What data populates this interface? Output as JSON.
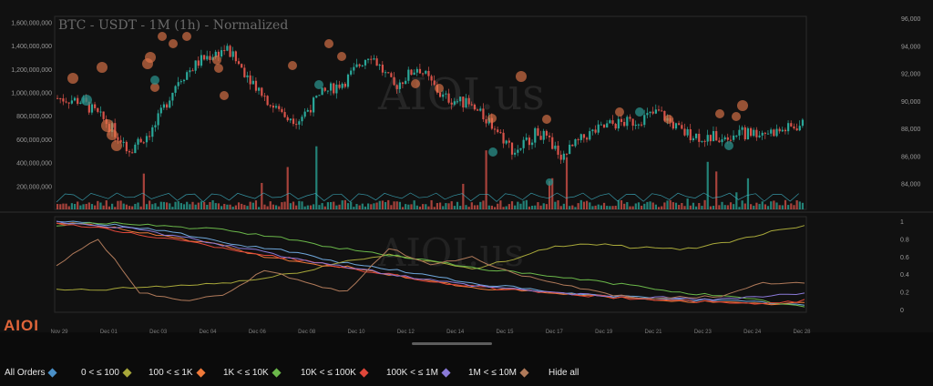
{
  "title": "BTC - USDT - 1M (1h) - Normalized",
  "watermark": "AIOI.us",
  "logo": "AIOI",
  "colors": {
    "background": "#111111",
    "up": "#2aa89a",
    "down": "#d9534a",
    "bubble": "#e0764a",
    "bubble_teal": "#2a8f89",
    "grid": "#262626"
  },
  "chart_data": [
    {
      "type": "candlestick",
      "title": "BTC - USDT - 1M (1h) - Normalized",
      "left_axis_ticks": [
        "1,600,000,000",
        "1,400,000,000",
        "1,200,000,000",
        "1,000,000,000",
        "800,000,000",
        "600,000,000",
        "400,000,000",
        "200,000,000"
      ],
      "left_axis_values": [
        1600000000,
        1400000000,
        1200000000,
        1000000000,
        800000000,
        600000000,
        400000000,
        200000000
      ],
      "right_axis_ticks": [
        "96,000",
        "94,000",
        "92,000",
        "90,000",
        "88,000",
        "86,000",
        "84,000"
      ],
      "right_axis_values": [
        96000,
        94000,
        92000,
        90000,
        88000,
        86000,
        84000
      ],
      "ylim_price": [
        82000,
        96000
      ],
      "price_path": [
        {
          "x": "Nov 29",
          "y": 90200
        },
        {
          "x": "Nov 30",
          "y": 90000
        },
        {
          "x": "Dec 01",
          "y": 88500
        },
        {
          "x": "Dec 01",
          "y": 86500
        },
        {
          "x": "Dec 02",
          "y": 88000
        },
        {
          "x": "Dec 02",
          "y": 91500
        },
        {
          "x": "Dec 03",
          "y": 93000
        },
        {
          "x": "Dec 04",
          "y": 93800
        },
        {
          "x": "Dec 05",
          "y": 91700
        },
        {
          "x": "Dec 06",
          "y": 89500
        },
        {
          "x": "Dec 07",
          "y": 88600
        },
        {
          "x": "Dec 08",
          "y": 90500
        },
        {
          "x": "Dec 09",
          "y": 91500
        },
        {
          "x": "Dec 10",
          "y": 93500
        },
        {
          "x": "Dec 11",
          "y": 91000
        },
        {
          "x": "Dec 12",
          "y": 92500
        },
        {
          "x": "Dec 13",
          "y": 90300
        },
        {
          "x": "Dec 14",
          "y": 89800
        },
        {
          "x": "Dec 15",
          "y": 88500
        },
        {
          "x": "Dec 16",
          "y": 86300
        },
        {
          "x": "Dec 17",
          "y": 87800
        },
        {
          "x": "Dec 18",
          "y": 86000
        },
        {
          "x": "Dec 19",
          "y": 87500
        },
        {
          "x": "Dec 20",
          "y": 88300
        },
        {
          "x": "Dec 21",
          "y": 88500
        },
        {
          "x": "Dec 22",
          "y": 89200
        },
        {
          "x": "Dec 23",
          "y": 87700
        },
        {
          "x": "Dec 24",
          "y": 87300
        },
        {
          "x": "Dec 25",
          "y": 87600
        },
        {
          "x": "Dec 26",
          "y": 87700
        },
        {
          "x": "Dec 27",
          "y": 87800
        },
        {
          "x": "Dec 28",
          "y": 88300
        }
      ]
    },
    {
      "type": "line",
      "right_axis_ticks": [
        "1",
        "0.8",
        "0.6",
        "0.4",
        "0.2",
        "0"
      ],
      "ylim": [
        0,
        1
      ],
      "x_ticks": [
        "Nov 29",
        "Dec 01",
        "Dec 03",
        "Dec 04",
        "Dec 06",
        "Dec 08",
        "Dec 10",
        "Dec 12",
        "Dec 14",
        "Dec 15",
        "Dec 17",
        "Dec 19",
        "Dec 21",
        "Dec 23",
        "Dec 24",
        "Dec 28"
      ],
      "series": [
        {
          "name": "All Orders",
          "color": "#6fa8dc",
          "values": [
            1,
            0.97,
            0.93,
            0.86,
            0.75,
            0.7,
            0.62,
            0.52,
            0.46,
            0.38,
            0.3,
            0.25,
            0.19,
            0.16,
            0.14,
            0.12,
            0.1,
            0.08,
            0.05
          ]
        },
        {
          "name": "0 < ≤ 100",
          "color": "#a8a83a",
          "values": [
            0.22,
            0.22,
            0.25,
            0.27,
            0.3,
            0.35,
            0.44,
            0.55,
            0.62,
            0.55,
            0.45,
            0.58,
            0.72,
            0.74,
            0.7,
            0.68,
            0.75,
            0.86,
            0.96
          ]
        },
        {
          "name": "100 < ≤ 1K",
          "color": "#f07a3a",
          "values": [
            0.98,
            0.95,
            0.88,
            0.8,
            0.72,
            0.6,
            0.52,
            0.48,
            0.4,
            0.32,
            0.25,
            0.22,
            0.18,
            0.15,
            0.12,
            0.1,
            0.08,
            0.06,
            0.08
          ]
        },
        {
          "name": "1K < ≤ 10K",
          "color": "#6bb84a",
          "values": [
            0.95,
            0.98,
            0.97,
            0.93,
            0.9,
            0.84,
            0.76,
            0.68,
            0.62,
            0.55,
            0.48,
            0.42,
            0.37,
            0.32,
            0.26,
            0.2,
            0.15,
            0.1,
            0.03
          ]
        },
        {
          "name": "10K < ≤ 100K",
          "color": "#e0473a",
          "values": [
            0.98,
            0.92,
            0.85,
            0.78,
            0.7,
            0.62,
            0.55,
            0.47,
            0.4,
            0.32,
            0.26,
            0.22,
            0.18,
            0.15,
            0.12,
            0.1,
            0.08,
            0.06,
            0.1
          ]
        },
        {
          "name": "100K < ≤ 1M",
          "color": "#8a7ad8",
          "values": [
            0.99,
            0.96,
            0.9,
            0.82,
            0.73,
            0.65,
            0.56,
            0.48,
            0.4,
            0.33,
            0.27,
            0.23,
            0.19,
            0.16,
            0.14,
            0.13,
            0.12,
            0.15,
            0.18
          ]
        },
        {
          "name": "1M < ≤ 10M",
          "color": "#b07a5a",
          "values": [
            0.5,
            0.8,
            0.2,
            0.1,
            0.15,
            0.45,
            0.3,
            0.2,
            0.7,
            0.5,
            0.6,
            0.4,
            0.3,
            0.2,
            0.12,
            0.15,
            0.14,
            0.3,
            0.3
          ]
        }
      ]
    }
  ],
  "legend": [
    {
      "label": "All Orders",
      "color": "#4a90c8"
    },
    {
      "label": "0 < ≤ 100",
      "color": "#a8a83a"
    },
    {
      "label": "100 < ≤ 1K",
      "color": "#f07a3a"
    },
    {
      "label": "1K < ≤ 10K",
      "color": "#6bb84a"
    },
    {
      "label": "10K < ≤ 100K",
      "color": "#e0473a"
    },
    {
      "label": "100K < ≤ 1M",
      "color": "#8a7ad8"
    },
    {
      "label": "1M < ≤ 10M",
      "color": "#b07a5a"
    },
    {
      "label": "Hide all",
      "color": ""
    }
  ]
}
